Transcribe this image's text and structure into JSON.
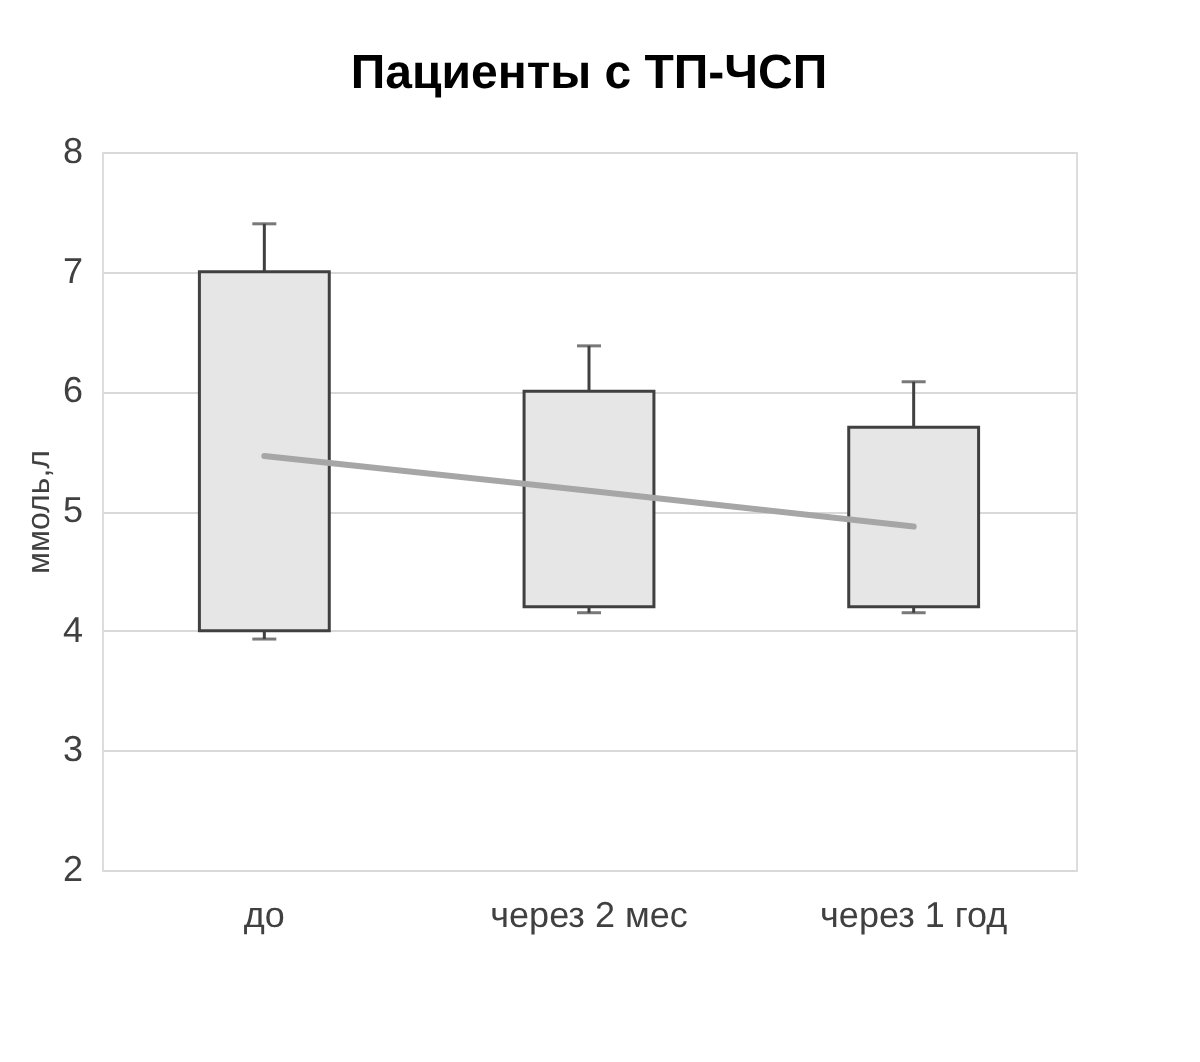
{
  "chart_data": {
    "type": "bar",
    "title": "Пациенты с ТП-ЧСП",
    "ylabel": "ммоль,л",
    "categories": [
      "до",
      "через 2 мес",
      "через 1 год"
    ],
    "series": [
      {
        "color": "#e7e6e6",
        "base": [
          4,
          4.2,
          4.2
        ],
        "values": [
          3,
          1.8,
          1.5
        ],
        "errors": [
          [
            3.93,
            7.4
          ],
          [
            4.15,
            6.38
          ],
          [
            4.15,
            6.08
          ]
        ]
      },
      {
        "type": "line",
        "color": "#a6a6a6",
        "values": [
          5.46,
          5.17,
          4.87
        ]
      }
    ],
    "ylim": [
      2,
      8
    ],
    "yticks": [
      2,
      3,
      4,
      5,
      6,
      7,
      8
    ],
    "grid": "y"
  }
}
